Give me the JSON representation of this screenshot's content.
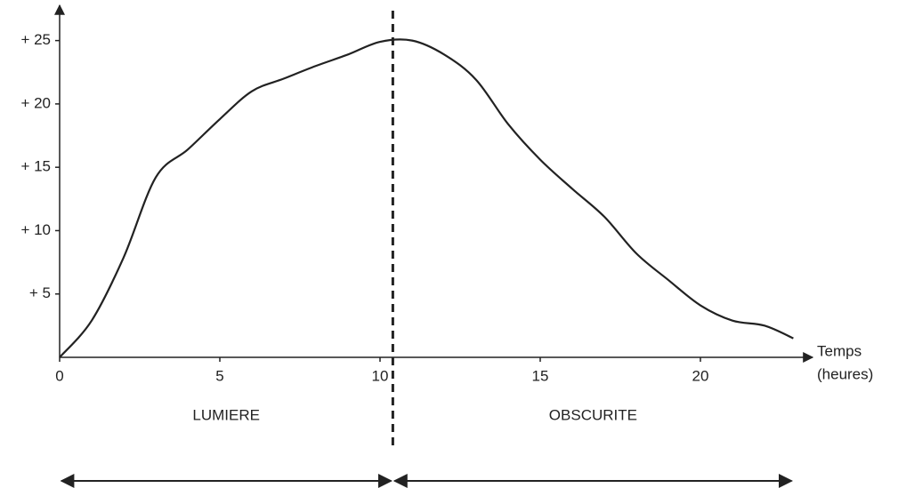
{
  "chart_data": {
    "type": "line",
    "xlabel": [
      "Temps",
      "(heures)"
    ],
    "x": [
      0,
      1,
      2,
      3,
      4,
      5,
      6,
      7,
      8,
      9,
      10,
      11,
      12,
      13,
      14,
      15,
      16,
      17,
      18,
      19,
      20,
      21,
      22,
      22.9
    ],
    "series": [
      {
        "color": "#222222",
        "values": [
          0,
          2.9,
          7.9,
          14.2,
          16.4,
          18.8,
          21,
          22,
          23,
          23.9,
          24.9,
          25,
          23.9,
          21.9,
          18.4,
          15.6,
          13.3,
          11.1,
          8.2,
          6.1,
          4.1,
          2.9,
          2.5,
          1.5
        ]
      }
    ],
    "xlim": [
      0,
      23.5
    ],
    "ylim": [
      0,
      27.5
    ],
    "xticks": [
      0,
      5,
      10,
      15,
      20
    ],
    "yticks": [
      {
        "value": 5,
        "label": "+ 5"
      },
      {
        "value": 10,
        "label": "+ 10"
      },
      {
        "value": 15,
        "label": "+ 15"
      },
      {
        "value": 20,
        "label": "+ 20"
      },
      {
        "value": 25,
        "label": "+ 25"
      }
    ],
    "divider_x": 10.4,
    "annotations": [
      {
        "text": "LUMIERE"
      },
      {
        "text": "OBSCURITE"
      }
    ],
    "grid": false
  }
}
